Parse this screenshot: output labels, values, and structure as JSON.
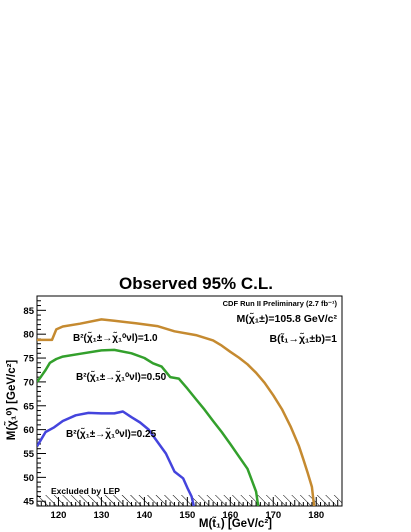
{
  "chart_data": {
    "type": "line",
    "title": "Observed 95% C.L.",
    "subtitle": "CDF Run II Preliminary (2.7 fb⁻¹)",
    "xlabel": "M(t̃₁) [GeV/c²]",
    "ylabel": "M(χ̃₁⁰) [GeV/c²]",
    "xlim": [
      115,
      186
    ],
    "ylim": [
      44,
      88
    ],
    "x_ticks": [
      120,
      130,
      140,
      150,
      160,
      170,
      180
    ],
    "y_ticks": [
      45,
      50,
      55,
      60,
      65,
      70,
      75,
      80,
      85
    ],
    "grid": false,
    "annotations": {
      "chargino_mass": "M(χ̃₁±)=105.8 GeV/c²",
      "stop_branching": "B(t̃₁→χ̃₁±b)=1",
      "lep_band": "Excluded by LEP"
    },
    "series": [
      {
        "name": "B²(χ̃₁±→χ̃₁⁰νl)=1.0",
        "color": "#c58a30",
        "x": [
          115,
          118.5,
          119.5,
          121,
          125,
          130,
          133,
          138,
          143,
          147,
          152,
          156,
          158,
          160,
          162,
          164,
          166,
          168,
          170,
          172,
          174,
          176,
          177,
          178,
          179,
          179.5
        ],
        "y": [
          78.8,
          78.8,
          81,
          81.6,
          82.2,
          83.1,
          82.8,
          82.3,
          81.7,
          80.6,
          79.8,
          78.7,
          77.6,
          76.3,
          75.1,
          73.7,
          71.9,
          69.8,
          67.2,
          64.3,
          60.7,
          56.5,
          53.8,
          51,
          48,
          44
        ]
      },
      {
        "name": "B²(χ̃₁±→χ̃₁⁰νl)=0.50",
        "color": "#33a02c",
        "x": [
          115,
          116,
          117,
          118,
          119.5,
          121,
          125,
          130,
          133,
          137,
          140,
          142,
          144,
          146,
          148,
          150,
          152,
          154,
          156,
          158,
          160,
          162,
          164,
          165,
          166,
          166.5
        ],
        "y": [
          70,
          71.2,
          72.5,
          74,
          74.8,
          75.3,
          75.9,
          76.6,
          76.7,
          76,
          75,
          73.9,
          73.2,
          71,
          70.7,
          68.6,
          66.4,
          64.2,
          61.8,
          59.5,
          57,
          54.4,
          51.8,
          49.4,
          47,
          44
        ]
      },
      {
        "name": "B²(χ̃₁±→χ̃₁⁰νl)=0.25",
        "color": "#4444dd",
        "x": [
          115,
          116,
          117,
          119,
          121,
          124,
          127,
          130,
          133,
          135,
          137,
          139,
          141,
          143,
          145,
          147,
          149,
          150,
          151,
          151.5
        ],
        "y": [
          56.5,
          58,
          59.5,
          60.5,
          61.8,
          63,
          63.5,
          63.4,
          63.4,
          63.8,
          62.6,
          61.5,
          60,
          57.5,
          55,
          51.2,
          49.8,
          47.8,
          46,
          44
        ]
      }
    ]
  },
  "series_labels": [
    {
      "text": "B²(χ̃₁±→χ̃₁⁰νl)=1.0",
      "color": "#c58a30"
    },
    {
      "text": "B²(χ̃₁±→χ̃₁⁰νl)=0.50",
      "color": "#33a02c"
    },
    {
      "text": "B²(χ̃₁±→χ̃₁⁰νl)=0.25",
      "color": "#4444dd"
    }
  ]
}
